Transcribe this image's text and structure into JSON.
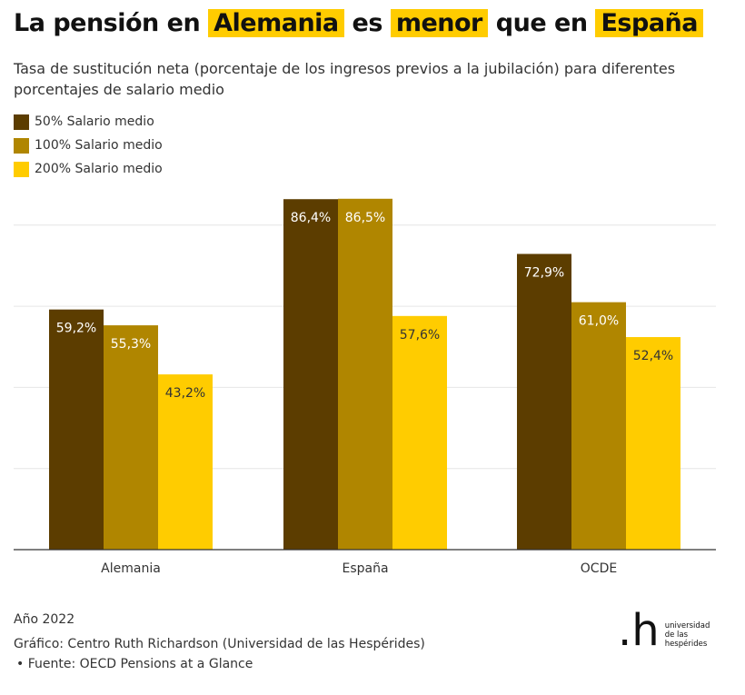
{
  "title": {
    "parts": [
      "La pensión en ",
      "Alemania",
      " es ",
      "menor",
      " que en ",
      "España"
    ]
  },
  "subtitle": "Tasa de sustitución neta (porcentaje de los ingresos previos a la jubilación) para diferentes porcentajes de salario medio",
  "footer": {
    "year": "Año 2022",
    "credit": "Gráfico: Centro Ruth Richardson (Universidad de las Hespérides)",
    "source": "• Fuente: OECD Pensions at a Glance"
  },
  "logo": {
    "mark": ".h",
    "text": [
      "universidad",
      "de las",
      "hespérides"
    ]
  },
  "highlight_color": "#ffcc00",
  "chart_data": {
    "type": "bar",
    "categories": [
      "Alemania",
      "España",
      "OCDE"
    ],
    "series": [
      {
        "name": "50% Salario medio",
        "values": [
          59.2,
          86.4,
          72.9
        ],
        "labels": [
          "59,2%",
          "86,4%",
          "72,9%"
        ],
        "color": "#5c3d00",
        "label_color": "#ffffff"
      },
      {
        "name": "100% Salario medio",
        "values": [
          55.3,
          86.5,
          61.0
        ],
        "labels": [
          "55,3%",
          "86,5%",
          "61,0%"
        ],
        "color": "#b08600",
        "label_color": "#ffffff"
      },
      {
        "name": "200% Salario medio",
        "values": [
          43.2,
          57.6,
          52.4
        ],
        "labels": [
          "43,2%",
          "57,6%",
          "52,4%"
        ],
        "color": "#ffcc00",
        "label_color": "#333333"
      }
    ],
    "ylim": [
      0,
      90
    ],
    "gridlines": [
      20,
      40,
      60,
      80
    ],
    "grid": true,
    "yaxis_labels_shown": false,
    "legend": "top-left"
  }
}
